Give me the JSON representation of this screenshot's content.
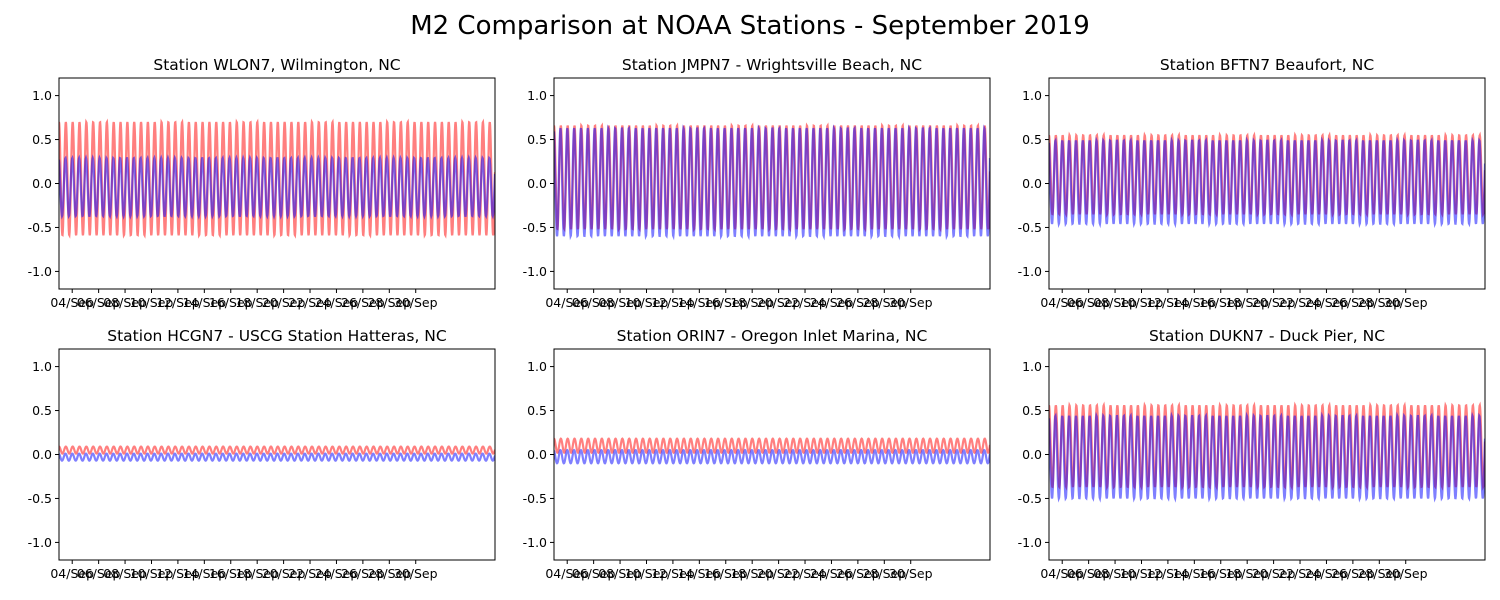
{
  "figure": {
    "title": "M2 Comparison at NOAA Stations - September 2019"
  },
  "colors": {
    "series_a": "#ff0000",
    "series_b": "#0000ff",
    "series_alpha": 0.5
  },
  "chart_data": [
    {
      "type": "line",
      "title": "Station WLON7, Wilmington, NC",
      "xlabel": "",
      "ylabel": "",
      "ylim": [
        -1.2,
        1.2
      ],
      "yticks": [
        -1.0,
        -0.5,
        0.0,
        0.5,
        1.0
      ],
      "xlim": [
        "2019-09-03",
        "2019-10-06"
      ],
      "xtick_dates": [
        "2019-09-04",
        "2019-09-06",
        "2019-09-08",
        "2019-09-10",
        "2019-09-12",
        "2019-09-14",
        "2019-09-16",
        "2019-09-18",
        "2019-09-20",
        "2019-09-22",
        "2019-09-24",
        "2019-09-26",
        "2019-09-28",
        "2019-09-30"
      ],
      "xticks": [
        "04/Sep",
        "06/Sep",
        "08/Sep",
        "10/Sep",
        "12/Sep",
        "14/Sep",
        "16/Sep",
        "18/Sep",
        "20/Sep",
        "22/Sep",
        "24/Sep",
        "26/Sep",
        "28/Sep",
        "30/Sep"
      ],
      "period_hours": 12.42,
      "series": [
        {
          "color_key": "series_a",
          "max": 0.7,
          "min": -0.59
        },
        {
          "color_key": "series_b",
          "max": 0.29,
          "min": -0.37
        }
      ]
    },
    {
      "type": "line",
      "title": "Station JMPN7 - Wrightsville Beach, NC",
      "xlabel": "",
      "ylabel": "",
      "ylim": [
        -1.2,
        1.2
      ],
      "yticks": [
        -1.0,
        -0.5,
        0.0,
        0.5,
        1.0
      ],
      "xlim": [
        "2019-09-03",
        "2019-10-06"
      ],
      "xtick_dates": [
        "2019-09-04",
        "2019-09-06",
        "2019-09-08",
        "2019-09-10",
        "2019-09-12",
        "2019-09-14",
        "2019-09-16",
        "2019-09-18",
        "2019-09-20",
        "2019-09-22",
        "2019-09-24",
        "2019-09-26",
        "2019-09-28",
        "2019-09-30"
      ],
      "xticks": [
        "04/Sep",
        "06/Sep",
        "08/Sep",
        "10/Sep",
        "12/Sep",
        "14/Sep",
        "16/Sep",
        "18/Sep",
        "20/Sep",
        "22/Sep",
        "24/Sep",
        "26/Sep",
        "28/Sep",
        "30/Sep"
      ],
      "period_hours": 12.42,
      "series": [
        {
          "color_key": "series_a",
          "max": 0.66,
          "min": -0.52
        },
        {
          "color_key": "series_b",
          "max": 0.63,
          "min": -0.6
        }
      ]
    },
    {
      "type": "line",
      "title": "Station BFTN7 Beaufort, NC",
      "xlabel": "",
      "ylabel": "",
      "ylim": [
        -1.2,
        1.2
      ],
      "yticks": [
        -1.0,
        -0.5,
        0.0,
        0.5,
        1.0
      ],
      "xlim": [
        "2019-09-03",
        "2019-10-06"
      ],
      "xtick_dates": [
        "2019-09-04",
        "2019-09-06",
        "2019-09-08",
        "2019-09-10",
        "2019-09-12",
        "2019-09-14",
        "2019-09-16",
        "2019-09-18",
        "2019-09-20",
        "2019-09-22",
        "2019-09-24",
        "2019-09-26",
        "2019-09-28",
        "2019-09-30"
      ],
      "xticks": [
        "04/Sep",
        "06/Sep",
        "08/Sep",
        "10/Sep",
        "12/Sep",
        "14/Sep",
        "16/Sep",
        "18/Sep",
        "20/Sep",
        "22/Sep",
        "24/Sep",
        "26/Sep",
        "28/Sep",
        "30/Sep"
      ],
      "period_hours": 12.42,
      "series": [
        {
          "color_key": "series_a",
          "max": 0.55,
          "min": -0.35
        },
        {
          "color_key": "series_b",
          "max": 0.49,
          "min": -0.46
        }
      ]
    },
    {
      "type": "line",
      "title": "Station HCGN7 - USCG Station Hatteras, NC",
      "xlabel": "",
      "ylabel": "",
      "ylim": [
        -1.2,
        1.2
      ],
      "yticks": [
        -1.0,
        -0.5,
        0.0,
        0.5,
        1.0
      ],
      "xlim": [
        "2019-09-03",
        "2019-10-06"
      ],
      "xtick_dates": [
        "2019-09-04",
        "2019-09-06",
        "2019-09-08",
        "2019-09-10",
        "2019-09-12",
        "2019-09-14",
        "2019-09-16",
        "2019-09-18",
        "2019-09-20",
        "2019-09-22",
        "2019-09-24",
        "2019-09-26",
        "2019-09-28",
        "2019-09-30"
      ],
      "xticks": [
        "04/Sep",
        "06/Sep",
        "08/Sep",
        "10/Sep",
        "12/Sep",
        "14/Sep",
        "16/Sep",
        "18/Sep",
        "20/Sep",
        "22/Sep",
        "24/Sep",
        "26/Sep",
        "28/Sep",
        "30/Sep"
      ],
      "period_hours": 12.42,
      "series": [
        {
          "color_key": "series_a",
          "max": 0.09,
          "min": 0.01
        },
        {
          "color_key": "series_b",
          "max": 0.01,
          "min": -0.07
        }
      ]
    },
    {
      "type": "line",
      "title": "Station ORIN7 - Oregon Inlet Marina, NC",
      "xlabel": "",
      "ylabel": "",
      "ylim": [
        -1.2,
        1.2
      ],
      "yticks": [
        -1.0,
        -0.5,
        0.0,
        0.5,
        1.0
      ],
      "xlim": [
        "2019-09-03",
        "2019-10-06"
      ],
      "xtick_dates": [
        "2019-09-04",
        "2019-09-06",
        "2019-09-08",
        "2019-09-10",
        "2019-09-12",
        "2019-09-14",
        "2019-09-16",
        "2019-09-18",
        "2019-09-20",
        "2019-09-22",
        "2019-09-24",
        "2019-09-26",
        "2019-09-28",
        "2019-09-30"
      ],
      "xticks": [
        "04/Sep",
        "06/Sep",
        "08/Sep",
        "10/Sep",
        "12/Sep",
        "14/Sep",
        "16/Sep",
        "18/Sep",
        "20/Sep",
        "22/Sep",
        "24/Sep",
        "26/Sep",
        "28/Sep",
        "30/Sep"
      ],
      "period_hours": 12.42,
      "series": [
        {
          "color_key": "series_a",
          "max": 0.18,
          "min": 0.02
        },
        {
          "color_key": "series_b",
          "max": 0.05,
          "min": -0.1
        }
      ]
    },
    {
      "type": "line",
      "title": "Station DUKN7 - Duck Pier, NC",
      "xlabel": "",
      "ylabel": "",
      "ylim": [
        -1.2,
        1.2
      ],
      "yticks": [
        -1.0,
        -0.5,
        0.0,
        0.5,
        1.0
      ],
      "xlim": [
        "2019-09-03",
        "2019-10-06"
      ],
      "xtick_dates": [
        "2019-09-04",
        "2019-09-06",
        "2019-09-08",
        "2019-09-10",
        "2019-09-12",
        "2019-09-14",
        "2019-09-16",
        "2019-09-18",
        "2019-09-20",
        "2019-09-22",
        "2019-09-24",
        "2019-09-26",
        "2019-09-28",
        "2019-09-30"
      ],
      "xticks": [
        "04/Sep",
        "06/Sep",
        "08/Sep",
        "10/Sep",
        "12/Sep",
        "14/Sep",
        "16/Sep",
        "18/Sep",
        "20/Sep",
        "22/Sep",
        "24/Sep",
        "26/Sep",
        "28/Sep",
        "30/Sep"
      ],
      "period_hours": 12.42,
      "series": [
        {
          "color_key": "series_a",
          "max": 0.56,
          "min": -0.37
        },
        {
          "color_key": "series_b",
          "max": 0.44,
          "min": -0.5
        }
      ]
    }
  ]
}
